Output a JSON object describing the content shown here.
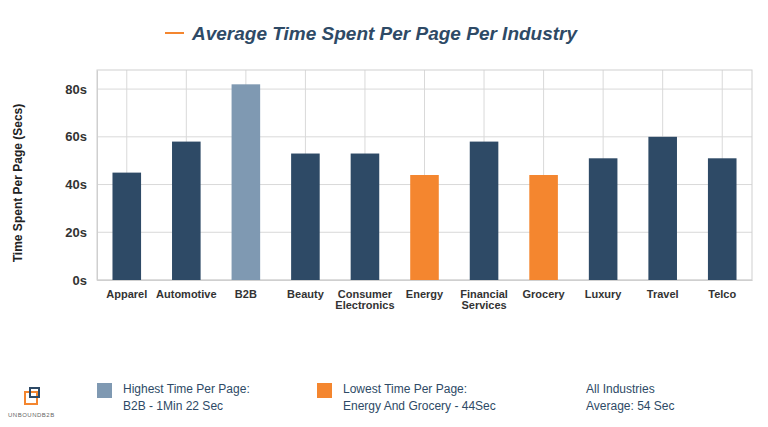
{
  "chart_data": {
    "type": "bar",
    "title": "Average Time Spent Per Page Per Industry",
    "y_label": "Time Spent Per Page (Secs)",
    "categories": [
      "Apparel",
      "Automotive",
      "B2B",
      "Beauty",
      "Consumer Electronics",
      "Energy",
      "Financial Services",
      "Grocery",
      "Luxury",
      "Travel",
      "Telco"
    ],
    "values": [
      45,
      58,
      82,
      53,
      53,
      44,
      58,
      44,
      51,
      60,
      51
    ],
    "colors": [
      "#2e4a66",
      "#2e4a66",
      "#7f99b2",
      "#2e4a66",
      "#2e4a66",
      "#f4862f",
      "#2e4a66",
      "#f4862f",
      "#2e4a66",
      "#2e4a66",
      "#2e4a66"
    ],
    "ylim": [
      0,
      88
    ],
    "yticks": [
      {
        "value": 0,
        "label": "0s"
      },
      {
        "value": 20,
        "label": "20s"
      },
      {
        "value": 40,
        "label": "40s"
      },
      {
        "value": 60,
        "label": "60s"
      },
      {
        "value": 80,
        "label": "80s"
      }
    ],
    "grid": true,
    "annotations": [
      {
        "text": [
          "Highest Time Per Page:",
          "B2B - 1Min 22 Sec"
        ],
        "color": "#7f99b2"
      },
      {
        "text": [
          "Lowest Time Per Page:",
          "Energy And Grocery - 44Sec"
        ],
        "color": "#f4862f"
      },
      {
        "text": [
          "All Industries",
          "Average: 54 Sec"
        ]
      },
      {
        "text": [
          "UNBOUNDB2B"
        ]
      }
    ]
  }
}
